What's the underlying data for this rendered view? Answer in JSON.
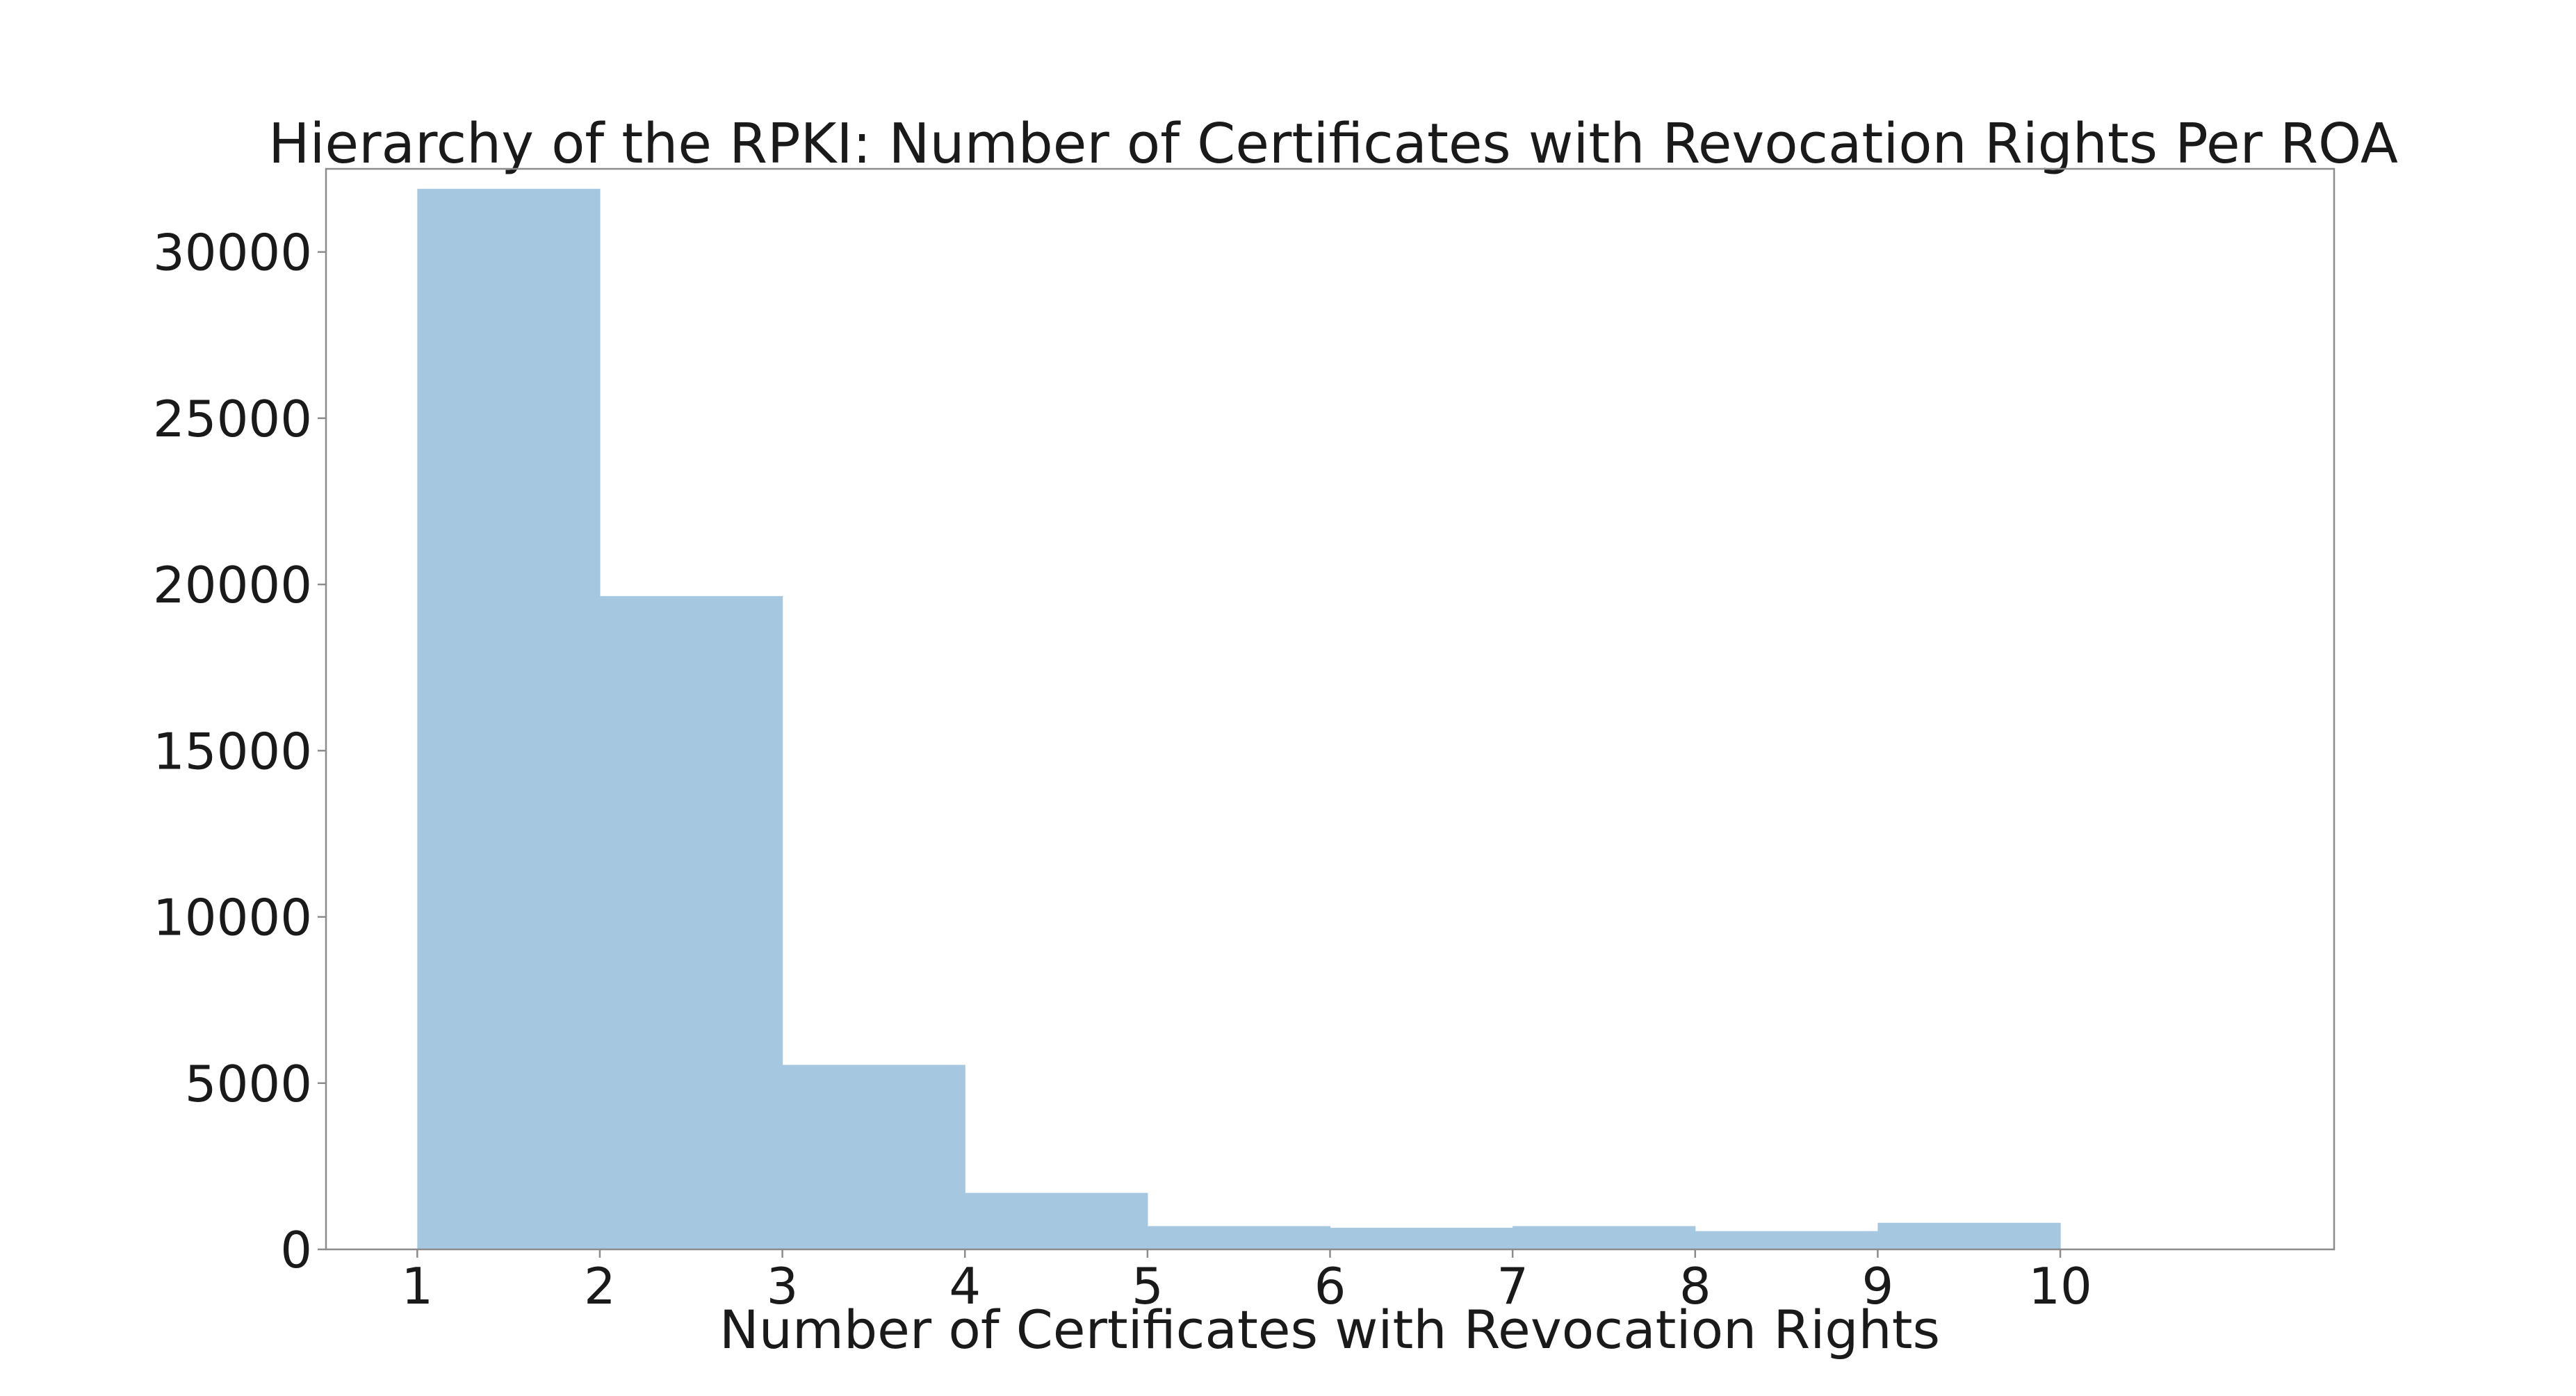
{
  "chart_data": {
    "type": "bar",
    "title": "Hierarchy of the RPKI: Number of Certificates with Revocation Rights Per ROA",
    "xlabel": "Number of Certificates with Revocation Rights",
    "ylabel": "",
    "bin_edges": [
      1,
      2,
      3,
      4,
      5,
      6,
      7,
      8,
      9,
      10
    ],
    "bins": [
      {
        "x0": 1,
        "x1": 2,
        "value": 31900
      },
      {
        "x0": 2,
        "x1": 3,
        "value": 19650
      },
      {
        "x0": 3,
        "x1": 4,
        "value": 5550
      },
      {
        "x0": 4,
        "x1": 5,
        "value": 1700
      },
      {
        "x0": 5,
        "x1": 6,
        "value": 700
      },
      {
        "x0": 6,
        "x1": 7,
        "value": 650
      },
      {
        "x0": 7,
        "x1": 8,
        "value": 700
      },
      {
        "x0": 8,
        "x1": 9,
        "value": 550
      },
      {
        "x0": 9,
        "x1": 10,
        "value": 800
      }
    ],
    "xlim": [
      0.5,
      11.5
    ],
    "ylim": [
      0,
      32500
    ],
    "xticks": [
      "1",
      "2",
      "3",
      "4",
      "5",
      "6",
      "7",
      "8",
      "9",
      "10"
    ],
    "yticks": [
      "0",
      "5000",
      "10000",
      "15000",
      "20000",
      "25000",
      "30000"
    ],
    "grid": false,
    "bar_color": "#a5c7e0"
  }
}
